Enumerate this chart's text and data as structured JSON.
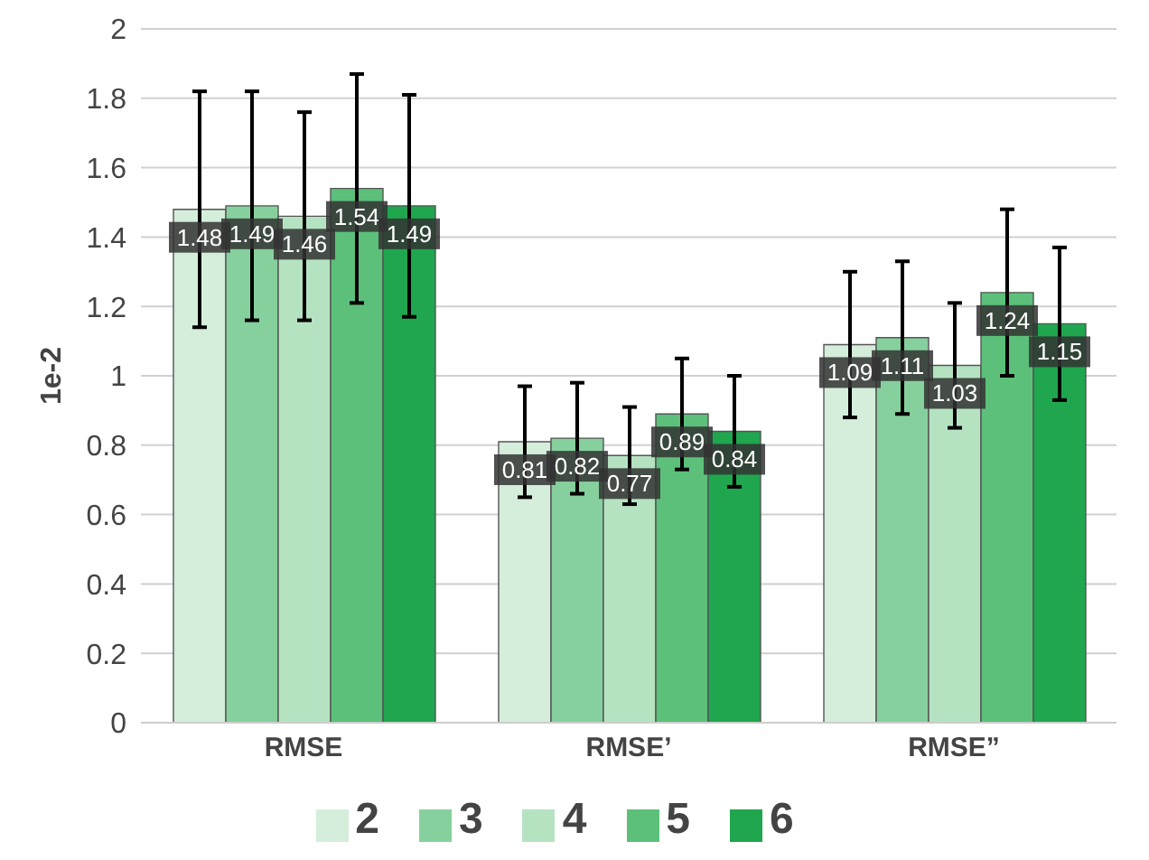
{
  "chart_data": {
    "type": "bar",
    "ylabel": "1e-2",
    "categories": [
      "RMSE",
      "RMSE’",
      "RMSE”"
    ],
    "series": [
      {
        "name": "2",
        "color": "#d4eedb",
        "values": [
          1.48,
          0.81,
          1.09
        ],
        "errors": [
          0.34,
          0.16,
          0.21
        ]
      },
      {
        "name": "3",
        "color": "#86d09d",
        "values": [
          1.49,
          0.82,
          1.11
        ],
        "errors": [
          0.33,
          0.16,
          0.22
        ]
      },
      {
        "name": "4",
        "color": "#b5e3c2",
        "values": [
          1.46,
          0.77,
          1.03
        ],
        "errors": [
          0.3,
          0.14,
          0.18
        ]
      },
      {
        "name": "5",
        "color": "#5cc07a",
        "values": [
          1.54,
          0.89,
          1.24
        ],
        "errors": [
          0.33,
          0.16,
          0.24
        ]
      },
      {
        "name": "6",
        "color": "#1fa64e",
        "values": [
          1.49,
          0.84,
          1.15
        ],
        "errors": [
          0.32,
          0.16,
          0.22
        ]
      }
    ],
    "ylim": [
      0,
      2
    ],
    "yticks": [
      0,
      0.2,
      0.4,
      0.6,
      0.8,
      1,
      1.2,
      1.4,
      1.6,
      1.8,
      2
    ],
    "grid": "y",
    "legend": "bottom",
    "data_labels": true
  }
}
